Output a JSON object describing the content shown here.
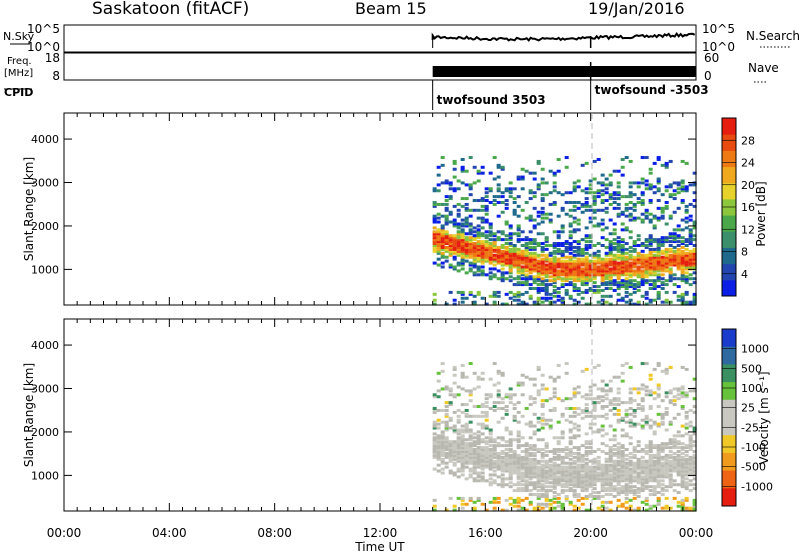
{
  "header": {
    "station": "Saskatoon (fitACF)",
    "beam": "Beam 15",
    "date": "19/Jan/2016"
  },
  "nsky_panel": {
    "label": "N.Sky",
    "right_label": "N.Search",
    "left_ticks": [
      "10^5",
      "10^0"
    ],
    "right_ticks": [
      "10^5",
      "10^0"
    ]
  },
  "freq_panel": {
    "label_line1": "Freq.",
    "label_line2": "[MHz]",
    "right_label": "Nave",
    "left_ticks": [
      "18",
      "8"
    ],
    "right_ticks": [
      "60",
      "0"
    ]
  },
  "cpid_panel": {
    "label": "CPID",
    "segments": [
      {
        "name": "twofsound 3503",
        "start_hour": 14.0
      },
      {
        "name": "twofsound -3503",
        "start_hour": 20.0
      }
    ]
  },
  "chart_data": [
    {
      "type": "heatmap",
      "name": "power",
      "ylabel": "Slant Range [km]",
      "yticks": [
        "1000",
        "2000",
        "3000",
        "4000"
      ],
      "ylim": [
        180,
        4600
      ],
      "xlim": [
        0,
        24
      ],
      "data_start_hour": 14.0,
      "colorbar_label": "Power [dB]",
      "colorbar_ticks": [
        "4",
        "8",
        "12",
        "16",
        "20",
        "24",
        "28"
      ],
      "colorbar_colors": [
        "#0a1ee6",
        "#2345b0",
        "#1f6a8c",
        "#3b8f6a",
        "#4aa84a",
        "#8cc63c",
        "#e6d22a",
        "#f0a81e",
        "#ee7a14",
        "#e84a10",
        "#e61e10"
      ]
    },
    {
      "type": "heatmap",
      "name": "velocity",
      "ylabel": "Slant Range [km]",
      "yticks": [
        "1000",
        "2000",
        "3000",
        "4000"
      ],
      "ylim": [
        180,
        4600
      ],
      "xlim": [
        0,
        24
      ],
      "data_start_hour": 14.0,
      "colorbar_label": "Velocity [m s⁻¹]",
      "colorbar_ticks": [
        "1000",
        "500",
        "100",
        "25",
        "-25",
        "-100",
        "-500",
        "-1000"
      ],
      "colorbar_colors": [
        "#1a3ccc",
        "#2e6aa0",
        "#3a9060",
        "#66c23a",
        "#c8c8c0",
        "#c8c8c0",
        "#f0c828",
        "#f09a1e",
        "#ee6414",
        "#e61e10"
      ]
    }
  ],
  "x_axis": {
    "label": "Time UT",
    "ticks": [
      "00:00",
      "04:00",
      "08:00",
      "12:00",
      "16:00",
      "20:00",
      "00:00"
    ]
  }
}
